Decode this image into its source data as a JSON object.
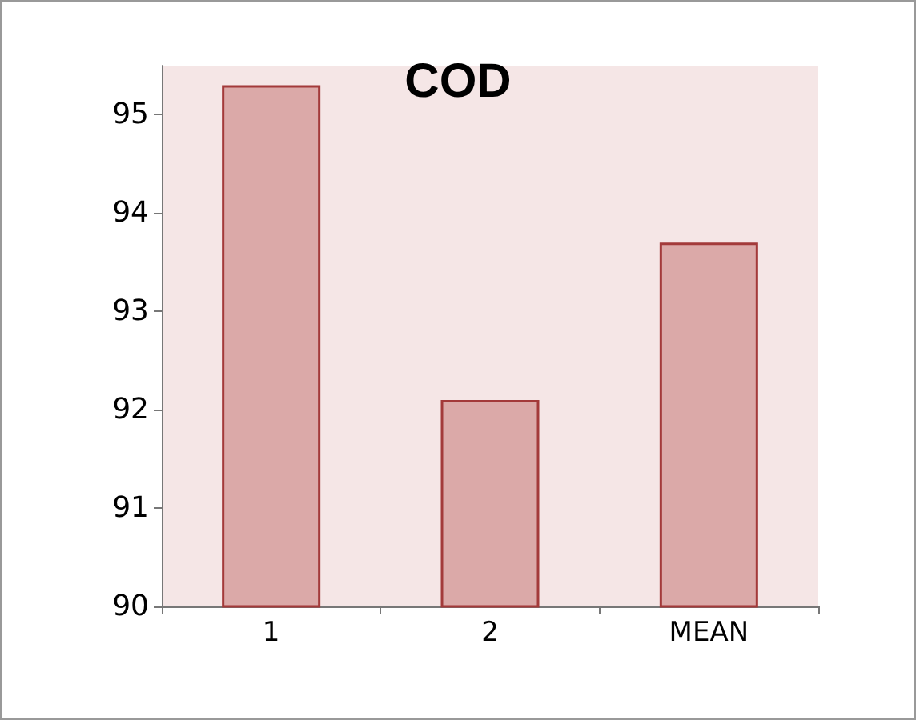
{
  "chart_data": {
    "type": "bar",
    "title": "COD",
    "categories": [
      "1",
      "2",
      "MEAN"
    ],
    "values": [
      95.3,
      92.1,
      93.7
    ],
    "color": "#dba9a8",
    "ylim": [
      90,
      95.5
    ],
    "yticks": [
      90,
      91,
      92,
      93,
      94,
      95
    ],
    "grid": false
  }
}
